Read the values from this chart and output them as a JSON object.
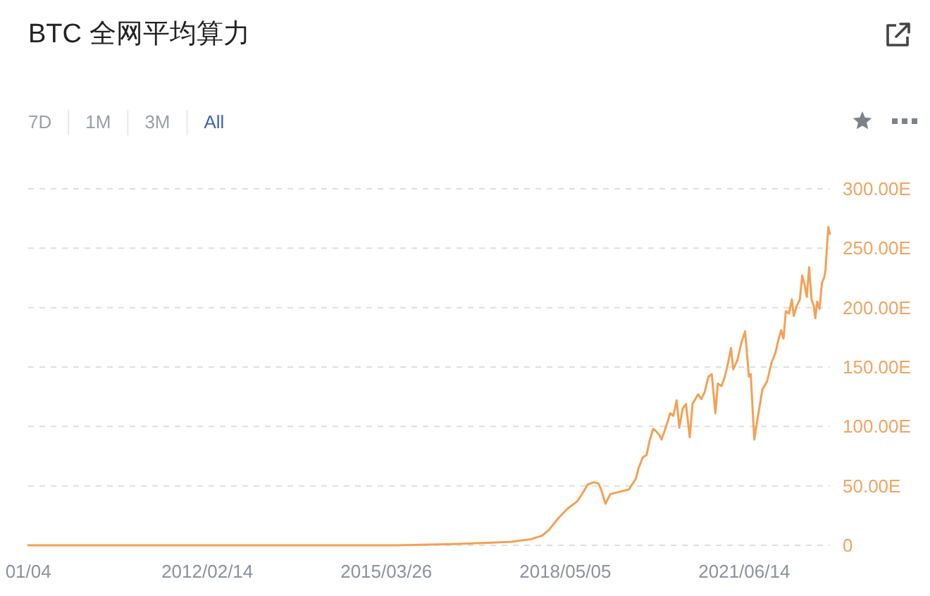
{
  "chart_data": {
    "type": "line",
    "title": "BTC 全网平均算力",
    "annotations": [
      "7D",
      "1M",
      "3M",
      "All"
    ],
    "x": [
      "2009-01-03",
      "2012-01-01",
      "2014-01-01",
      "2015-06-01",
      "2016-06-01",
      "2017-01-01",
      "2017-05-29",
      "2017-09-25",
      "2017-12-08",
      "2018-01-22",
      "2018-03-23",
      "2018-05-21",
      "2018-07-20",
      "2018-08-19",
      "2018-09-24",
      "2018-11-01",
      "2018-12-01",
      "2018-12-16",
      "2019-01-15",
      "2019-02-14",
      "2019-04-14",
      "2019-06-13",
      "2019-07-27",
      "2019-08-11",
      "2019-09-09",
      "2019-10-03",
      "2019-10-24",
      "2019-11-14",
      "2019-12-02",
      "2019-12-22",
      "2020-01-06",
      "2020-01-27",
      "2020-02-14",
      "2020-02-29",
      "2020-03-21",
      "2020-04-11",
      "2020-04-28",
      "2020-05-19",
      "2020-06-09",
      "2020-07-03",
      "2020-07-21",
      "2020-08-08",
      "2020-08-25",
      "2020-09-15",
      "2020-10-06",
      "2020-10-30",
      "2020-11-20",
      "2020-12-13",
      "2020-12-28",
      "2021-01-21",
      "2021-02-11",
      "2021-03-04",
      "2021-03-22",
      "2021-04-05",
      "2021-05-02",
      "2021-05-26",
      "2021-06-19",
      "2021-07-01",
      "2021-07-13",
      "2021-07-25",
      "2021-08-17",
      "2021-09-07",
      "2021-10-07",
      "2021-11-06",
      "2021-12-05",
      "2021-12-29",
      "2022-01-19",
      "2022-02-03",
      "2022-02-18",
      "2022-03-05",
      "2022-03-25",
      "2022-04-12",
      "2022-04-24",
      "2022-05-12",
      "2022-06-02",
      "2022-06-17",
      "2022-07-02",
      "2022-07-16",
      "2022-07-31",
      "2022-08-15",
      "2022-08-30",
      "2022-09-08",
      "2022-09-20",
      "2022-10-05",
      "2022-10-20",
      "2022-11-03",
      "2022-11-12",
      "2022-11-21",
      "2022-11-30",
      "2022-12-09"
    ],
    "values": [
      0,
      0,
      0,
      0,
      1,
      2,
      3,
      5,
      8,
      13,
      23,
      31,
      37,
      43,
      51,
      53,
      52,
      48,
      35,
      43,
      45,
      47,
      56,
      64,
      74,
      76,
      89,
      98,
      96,
      93,
      89,
      97,
      104,
      111,
      109,
      122,
      99,
      115,
      119,
      91,
      119,
      123,
      127,
      123,
      129,
      142,
      144,
      111,
      136,
      134,
      142,
      154,
      166,
      148,
      156,
      170,
      180,
      162,
      142,
      144,
      89,
      107,
      131,
      138,
      154,
      162,
      174,
      181,
      174,
      197,
      195,
      207,
      193,
      201,
      207,
      227,
      219,
      209,
      234,
      207,
      201,
      191,
      205,
      199,
      221,
      225,
      232,
      252,
      268,
      262
    ],
    "color": "#f4a055",
    "line_style": "solid",
    "xlim": [
      "2009-01-03",
      "2022-12-10"
    ],
    "xticks": [
      {
        "value": "2009-01-04",
        "label": "01/04"
      },
      {
        "value": "2012-02-14",
        "label": "2012/02/14"
      },
      {
        "value": "2015-03-26",
        "label": "2015/03/26"
      },
      {
        "value": "2018-05-05",
        "label": "2018/05/05"
      },
      {
        "value": "2021-06-14",
        "label": "2021/06/14"
      }
    ],
    "ylim": [
      0,
      300
    ],
    "yticks": [
      0,
      {
        "value": 50,
        "label": "50.00E"
      },
      {
        "value": 100,
        "label": "100.00E"
      },
      {
        "value": 150,
        "label": "150.00E"
      },
      {
        "value": 200,
        "label": "200.00E"
      },
      {
        "value": 250,
        "label": "250.00E"
      },
      {
        "value": 300,
        "label": "300.00E"
      }
    ],
    "grid": "y"
  }
}
